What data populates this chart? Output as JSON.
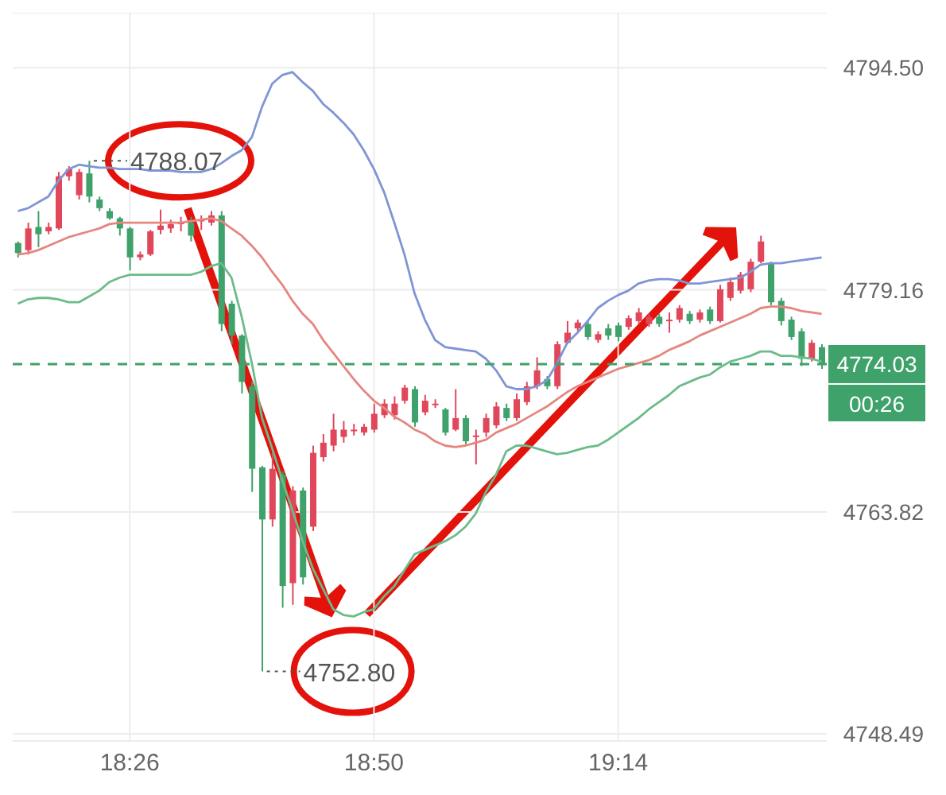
{
  "chart_data": {
    "type": "candlestick",
    "categories": [
      null,
      null,
      null,
      null,
      null,
      null,
      null,
      null,
      null,
      null,
      null,
      "18:26",
      null,
      null,
      null,
      null,
      null,
      null,
      null,
      null,
      null,
      null,
      null,
      null,
      null,
      null,
      null,
      null,
      null,
      null,
      null,
      null,
      null,
      null,
      null,
      "18:50",
      null,
      null,
      null,
      null,
      null,
      null,
      null,
      null,
      null,
      null,
      null,
      null,
      null,
      null,
      null,
      null,
      null,
      null,
      null,
      null,
      null,
      null,
      null,
      "19:14",
      null,
      null,
      null,
      null,
      null,
      null,
      null,
      null,
      null,
      null,
      null,
      null,
      null,
      null,
      null,
      null,
      null,
      null,
      null,
      null
    ],
    "ohlc": [
      [
        4782.4,
        4782.5,
        4781.4,
        4781.7
      ],
      [
        4781.9,
        4783.8,
        4781.6,
        4783.4
      ],
      [
        4783.5,
        4784.6,
        4782.1,
        4783.0
      ],
      [
        4783.2,
        4783.8,
        4783.0,
        4783.5
      ],
      [
        4783.4,
        4787.3,
        4783.3,
        4787.0
      ],
      [
        4787.0,
        4787.7,
        4786.7,
        4787.5
      ],
      [
        4785.7,
        4787.5,
        4785.4,
        4787.3
      ],
      [
        4787.2,
        4788.07,
        4785.2,
        4785.6
      ],
      [
        4785.4,
        4785.6,
        4784.6,
        4784.8
      ],
      [
        4784.6,
        4784.8,
        4784.0,
        4784.1
      ],
      [
        4784.1,
        4784.2,
        4782.9,
        4783.4
      ],
      [
        4783.4,
        4783.5,
        4780.5,
        4781.4
      ],
      [
        4781.4,
        4781.8,
        4781.2,
        4781.6
      ],
      [
        4781.6,
        4783.3,
        4781.5,
        4783.2
      ],
      [
        4783.3,
        4784.7,
        4783.0,
        4783.6
      ],
      [
        4783.4,
        4784.0,
        4783.1,
        4783.7
      ],
      [
        4783.7,
        4784.2,
        4783.2,
        4783.8
      ],
      [
        4783.8,
        4784.2,
        4782.5,
        4782.9
      ],
      [
        4783.9,
        4784.3,
        4783.3,
        4784.0
      ],
      [
        4783.8,
        4784.6,
        4783.6,
        4784.3
      ],
      [
        4784.3,
        4784.6,
        4776.3,
        4776.8
      ],
      [
        4778.2,
        4778.4,
        4775.4,
        4776.0
      ],
      [
        4776.0,
        4776.1,
        4772.0,
        4772.8
      ],
      [
        4772.5,
        4772.8,
        4765.2,
        4766.8
      ],
      [
        4766.9,
        4767.0,
        4752.8,
        4763.3
      ],
      [
        4763.3,
        4767.9,
        4762.8,
        4766.8
      ],
      [
        4766.4,
        4766.6,
        4757.2,
        4758.7
      ],
      [
        4758.9,
        4765.6,
        4757.4,
        4765.3
      ],
      [
        4765.3,
        4765.5,
        4758.8,
        4759.3
      ],
      [
        4762.8,
        4768.4,
        4762.5,
        4767.9
      ],
      [
        4767.6,
        4769.2,
        4767.3,
        4768.6
      ],
      [
        4768.4,
        4770.6,
        4768.0,
        4769.5
      ],
      [
        4769.0,
        4770.1,
        4768.6,
        4769.5
      ],
      [
        4769.4,
        4769.9,
        4769.1,
        4769.5
      ],
      [
        4769.3,
        4769.9,
        4769.1,
        4769.7
      ],
      [
        4769.5,
        4771.3,
        4769.3,
        4770.6
      ],
      [
        4770.5,
        4771.6,
        4770.3,
        4771.3
      ],
      [
        4770.5,
        4771.8,
        4770.2,
        4771.3
      ],
      [
        4771.5,
        4772.6,
        4771.3,
        4772.4
      ],
      [
        4772.3,
        4772.5,
        4769.7,
        4770.0
      ],
      [
        4770.7,
        4771.9,
        4770.5,
        4771.5
      ],
      [
        4771.2,
        4771.6,
        4771.0,
        4771.3
      ],
      [
        4770.9,
        4771.0,
        4769.1,
        4769.3
      ],
      [
        4769.5,
        4772.3,
        4769.4,
        4770.3
      ],
      [
        4770.3,
        4770.5,
        4768.5,
        4768.7
      ],
      [
        4769.0,
        4769.5,
        4767.1,
        4769.1
      ],
      [
        4769.3,
        4770.6,
        4769.0,
        4770.3
      ],
      [
        4769.8,
        4771.4,
        4769.6,
        4771.1
      ],
      [
        4771.0,
        4771.3,
        4770.1,
        4770.3
      ],
      [
        4770.3,
        4772.0,
        4770.1,
        4771.6
      ],
      [
        4771.4,
        4772.8,
        4771.2,
        4772.5
      ],
      [
        4772.5,
        4774.5,
        4772.3,
        4773.6
      ],
      [
        4773.0,
        4773.2,
        4772.3,
        4772.5
      ],
      [
        4772.5,
        4775.6,
        4772.3,
        4775.4
      ],
      [
        4775.5,
        4777.0,
        4775.4,
        4776.2
      ],
      [
        4776.5,
        4777.1,
        4776.3,
        4776.9
      ],
      [
        4776.8,
        4777.0,
        4775.7,
        4775.9
      ],
      [
        4775.7,
        4776.3,
        4775.5,
        4776.1
      ],
      [
        4776.5,
        4776.8,
        4775.7,
        4776.0
      ],
      [
        4776.7,
        4776.9,
        4775.6,
        4775.9
      ],
      [
        4776.6,
        4777.4,
        4776.4,
        4777.2
      ],
      [
        4777.0,
        4777.9,
        4776.8,
        4777.6
      ],
      [
        4776.8,
        4777.5,
        4776.6,
        4777.3
      ],
      [
        4777.3,
        4777.5,
        4776.6,
        4776.8
      ],
      [
        4777.0,
        4777.6,
        4776.2,
        4777.1
      ],
      [
        4777.1,
        4778.1,
        4776.9,
        4777.9
      ],
      [
        4777.5,
        4777.7,
        4776.8,
        4777.0
      ],
      [
        4777.1,
        4777.8,
        4776.9,
        4777.6
      ],
      [
        4777.8,
        4778.0,
        4776.8,
        4777.0
      ],
      [
        4777.0,
        4779.5,
        4776.9,
        4779.2
      ],
      [
        4778.6,
        4780.0,
        4778.4,
        4779.7
      ],
      [
        4779.1,
        4780.4,
        4778.9,
        4780.2
      ],
      [
        4779.2,
        4781.3,
        4779.0,
        4781.1
      ],
      [
        4781.1,
        4782.9,
        4781.0,
        4782.5
      ],
      [
        4781.0,
        4781.1,
        4778.1,
        4778.3
      ],
      [
        4778.4,
        4778.6,
        4776.7,
        4777.0
      ],
      [
        4777.1,
        4777.3,
        4775.7,
        4775.9
      ],
      [
        4776.3,
        4776.5,
        4773.9,
        4774.4
      ],
      [
        4774.4,
        4775.7,
        4774.2,
        4775.5
      ],
      [
        4775.2,
        4775.4,
        4773.7,
        4774.03
      ]
    ],
    "colors": [
      "#3fa26b",
      "#e0475b",
      "#3fa26b",
      "#e0475b",
      "#e0475b",
      "#e0475b",
      "#e0475b",
      "#3fa26b",
      "#3fa26b",
      "#3fa26b",
      "#3fa26b",
      "#3fa26b",
      "#e0475b",
      "#e0475b",
      "#e0475b",
      "#e0475b",
      "#e0475b",
      "#3fa26b",
      "#e0475b",
      "#e0475b",
      "#3fa26b",
      "#3fa26b",
      "#3fa26b",
      "#3fa26b",
      "#3fa26b",
      "#e0475b",
      "#3fa26b",
      "#e0475b",
      "#3fa26b",
      "#e0475b",
      "#e0475b",
      "#e0475b",
      "#e0475b",
      "#e0475b",
      "#e0475b",
      "#e0475b",
      "#e0475b",
      "#e0475b",
      "#e0475b",
      "#3fa26b",
      "#e0475b",
      "#e0475b",
      "#3fa26b",
      "#e0475b",
      "#3fa26b",
      "#e0475b",
      "#e0475b",
      "#e0475b",
      "#3fa26b",
      "#e0475b",
      "#e0475b",
      "#e0475b",
      "#3fa26b",
      "#e0475b",
      "#e0475b",
      "#e0475b",
      "#3fa26b",
      "#e0475b",
      "#3fa26b",
      "#3fa26b",
      "#e0475b",
      "#e0475b",
      "#e0475b",
      "#3fa26b",
      "#e0475b",
      "#e0475b",
      "#3fa26b",
      "#e0475b",
      "#3fa26b",
      "#e0475b",
      "#e0475b",
      "#e0475b",
      "#e0475b",
      "#e0475b",
      "#3fa26b",
      "#3fa26b",
      "#3fa26b",
      "#3fa26b",
      "#e0475b",
      "#3fa26b"
    ],
    "series": [
      {
        "type": "line",
        "color": "#7f95d4",
        "values": [
          4784.6,
          4784.8,
          4785.2,
          4785.6,
          4786.7,
          4787.5,
          4787.8,
          4787.7,
          4787.6,
          4787.6,
          4787.5,
          4787.5,
          4787.5,
          4787.4,
          4787.4,
          4787.4,
          4787.3,
          4787.3,
          4787.3,
          4787.5,
          4787.9,
          4788.4,
          4788.8,
          4789.7,
          4791.8,
          4793.4,
          4794.0,
          4794.2,
          4793.5,
          4792.9,
          4792.0,
          4791.4,
          4790.7,
          4789.9,
          4788.8,
          4787.5,
          4785.9,
          4783.8,
          4781.6,
          4778.9,
          4777.1,
          4775.7,
          4775.2,
          4775.1,
          4775.0,
          4774.9,
          4774.4,
          4773.6,
          4772.5,
          4772.3,
          4772.3,
          4772.5,
          4772.9,
          4774.1,
          4775.5,
          4776.2,
          4777.0,
          4777.9,
          4778.4,
          4778.8,
          4779.1,
          4779.6,
          4779.8,
          4779.9,
          4779.9,
          4779.8,
          4779.6,
          4779.6,
          4779.7,
          4779.8,
          4779.9,
          4780.0,
          4780.4,
          4780.9,
          4781.0,
          4781.0,
          4781.1,
          4781.2,
          4781.3,
          4781.4
        ]
      },
      {
        "type": "line",
        "color": "#e5867f",
        "values": [
          4781.6,
          4781.7,
          4781.9,
          4782.2,
          4782.5,
          4782.8,
          4783.0,
          4783.2,
          4783.4,
          4783.7,
          4783.8,
          4783.8,
          4783.8,
          4783.8,
          4783.8,
          4783.8,
          4783.8,
          4783.9,
          4784.0,
          4784.1,
          4783.9,
          4783.4,
          4782.9,
          4782.2,
          4781.4,
          4780.4,
          4779.5,
          4778.4,
          4777.5,
          4776.8,
          4775.7,
          4774.8,
          4773.9,
          4773.0,
          4772.2,
          4771.5,
          4771.0,
          4770.4,
          4770.0,
          4769.5,
          4769.2,
          4768.7,
          4768.4,
          4768.3,
          4768.4,
          4768.6,
          4768.8,
          4769.3,
          4769.6,
          4769.9,
          4770.3,
          4770.7,
          4771.1,
          4771.6,
          4772.1,
          4772.5,
          4772.8,
          4773.1,
          4773.4,
          4773.7,
          4773.9,
          4774.1,
          4774.3,
          4774.6,
          4775.0,
          4775.3,
          4775.6,
          4776.0,
          4776.3,
          4776.6,
          4776.9,
          4777.2,
          4777.5,
          4777.9,
          4778.0,
          4778.0,
          4777.9,
          4777.7,
          4777.6,
          4777.5
        ]
      },
      {
        "type": "line",
        "color": "#6dbb8a",
        "values": [
          4778.2,
          4778.5,
          4778.6,
          4778.6,
          4778.5,
          4778.3,
          4778.3,
          4778.7,
          4779.1,
          4779.7,
          4780.0,
          4780.2,
          4780.2,
          4780.2,
          4780.2,
          4780.2,
          4780.2,
          4780.2,
          4780.4,
          4780.8,
          4781.0,
          4780.0,
          4777.3,
          4774.1,
          4770.3,
          4768.2,
          4766.0,
          4763.9,
          4761.8,
          4759.9,
          4758.5,
          4757.1,
          4756.7,
          4756.6,
          4756.9,
          4757.1,
          4758.0,
          4758.7,
          4759.8,
          4760.9,
          4761.2,
          4761.5,
          4761.8,
          4762.2,
          4762.8,
          4763.7,
          4765.2,
          4766.4,
          4768.0,
          4768.4,
          4768.4,
          4768.2,
          4768.0,
          4767.8,
          4767.9,
          4768.1,
          4768.3,
          4768.4,
          4768.8,
          4769.3,
          4769.8,
          4770.3,
          4770.9,
          4771.4,
          4771.9,
          4772.5,
          4772.8,
          4773.1,
          4773.3,
          4773.8,
          4774.2,
          4774.4,
          4774.6,
          4774.9,
          4774.9,
          4774.6,
          4774.6,
          4774.5,
          4774.4,
          4774.2
        ]
      }
    ],
    "ylim": [
      4748.0,
      4798.3
    ],
    "yticks": [
      4748.49,
      4763.82,
      4779.16,
      {
        "value": 4794.5,
        "label": "4794.50"
      }
    ],
    "grid": true,
    "ref_lines": [
      {
        "axis": "y",
        "value": 4774.03,
        "label": "4774.03",
        "color": "#3fa26b",
        "line_style": "dashed"
      }
    ],
    "annotations": [
      "4788.07",
      "4752.80",
      "00:26"
    ]
  }
}
